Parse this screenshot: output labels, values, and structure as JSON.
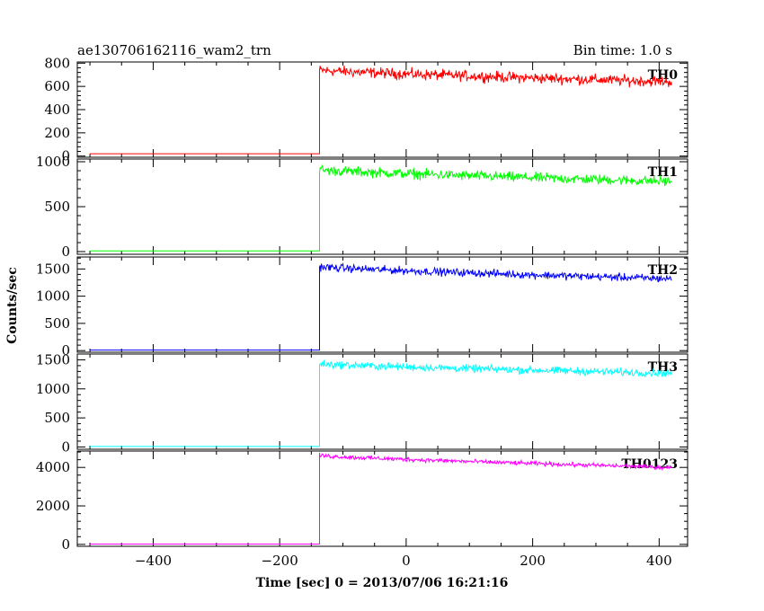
{
  "header": {
    "title": "ae130706162116_wam2_trn",
    "bin_time": "Bin time: 1.0 s"
  },
  "chart_data": {
    "type": "line",
    "xlabel": "Time [sec] 0 = 2013/07/06 16:21:16",
    "ylabel": "Counts/sec",
    "xlim": [
      -520,
      445
    ],
    "x_ticks": [
      -400,
      -200,
      0,
      200,
      400
    ],
    "x_start": -500,
    "x_end": 420,
    "step_time": -137,
    "panels": [
      {
        "name": "TH0",
        "color": "#ff0000",
        "ylim": [
          -10,
          810
        ],
        "y_ticks": [
          0,
          200,
          400,
          600,
          800
        ],
        "pre_level": 20,
        "post_start": 740,
        "post_end": 640,
        "noise": 45
      },
      {
        "name": "TH1",
        "color": "#00ff00",
        "ylim": [
          -30,
          1030
        ],
        "y_ticks": [
          0,
          500,
          1000
        ],
        "pre_level": 8,
        "post_start": 910,
        "post_end": 780,
        "noise": 55
      },
      {
        "name": "TH2",
        "color": "#0000ff",
        "ylim": [
          -30,
          1720
        ],
        "y_ticks": [
          0,
          500,
          1000,
          1500
        ],
        "pre_level": 10,
        "post_start": 1540,
        "post_end": 1320,
        "noise": 70
      },
      {
        "name": "TH3",
        "color": "#00ffff",
        "ylim": [
          -40,
          1600
        ],
        "y_ticks": [
          0,
          500,
          1000,
          1500
        ],
        "pre_level": 8,
        "post_start": 1430,
        "post_end": 1270,
        "noise": 65
      },
      {
        "name": "TH0123",
        "color": "#ff00ff",
        "ylim": [
          -100,
          4850
        ],
        "y_ticks": [
          0,
          2000,
          4000
        ],
        "pre_level": 15,
        "post_start": 4620,
        "post_end": 4000,
        "noise": 110
      }
    ]
  }
}
